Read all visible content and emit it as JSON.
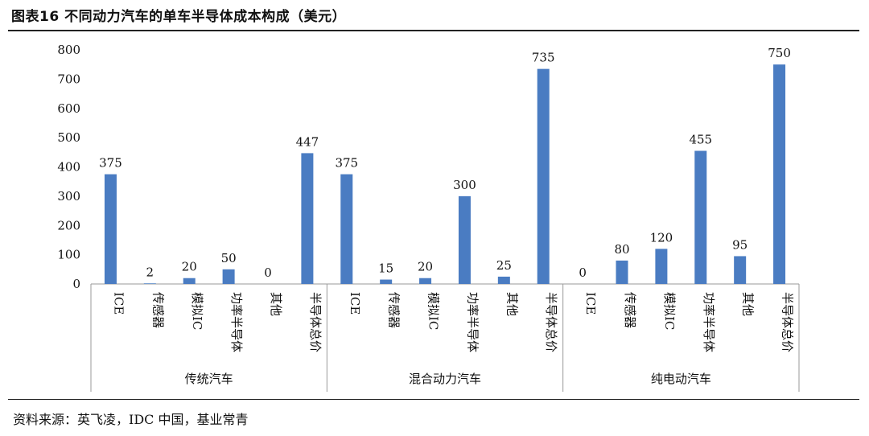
{
  "title": "图表16 不同动力汽车的单车半导体成本构成（美元）",
  "source": "资料来源：英飞凌，IDC 中国，基业常青",
  "chart_data": {
    "type": "bar",
    "ylim": [
      0,
      800
    ],
    "yticks": [
      0,
      100,
      200,
      300,
      400,
      500,
      600,
      700,
      800
    ],
    "bar_color": "#4a7cc2",
    "grid": false,
    "groups": [
      {
        "name": "传统汽车",
        "categories": [
          "ICE",
          "传感器",
          "模拟IC",
          "功率半导体",
          "其他",
          "半导体总价"
        ],
        "values": [
          375,
          2,
          20,
          50,
          0,
          447
        ]
      },
      {
        "name": "混合动力汽车",
        "categories": [
          "ICE",
          "传感器",
          "模拟IC",
          "功率半导体",
          "其他",
          "半导体总价"
        ],
        "values": [
          375,
          15,
          20,
          300,
          25,
          735
        ]
      },
      {
        "name": "纯电动汽车",
        "categories": [
          "ICE",
          "传感器",
          "模拟IC",
          "功率半导体",
          "其他",
          "半导体总价"
        ],
        "values": [
          0,
          80,
          120,
          455,
          95,
          750
        ]
      }
    ]
  }
}
